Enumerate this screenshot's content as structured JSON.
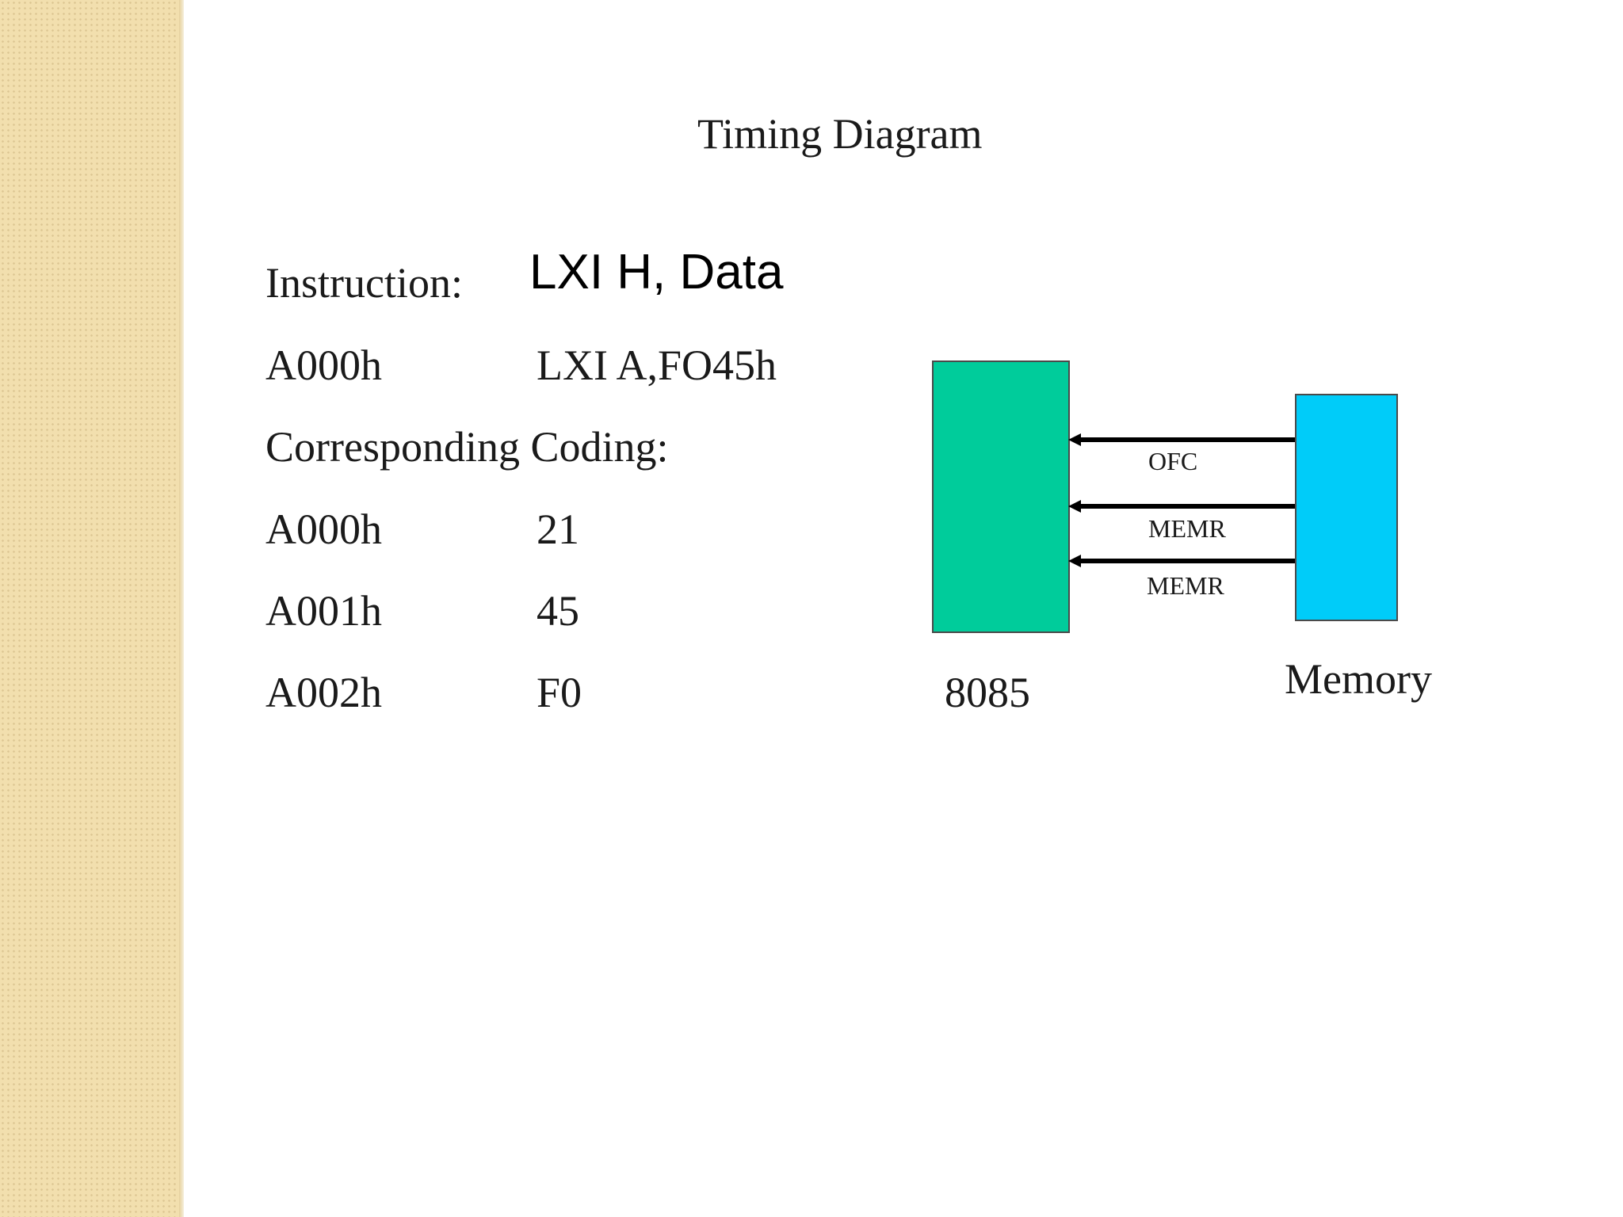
{
  "title": "Timing Diagram",
  "instruction": {
    "label": "Instruction:",
    "value": "LXI H, Data"
  },
  "example": {
    "address": "A000h",
    "code": "LXI A,FO45h"
  },
  "coding": {
    "label": "Corresponding Coding:",
    "rows": [
      {
        "address": "A000h",
        "value": "21"
      },
      {
        "address": "A001h",
        "value": "45"
      },
      {
        "address": "A002h",
        "value": "F0"
      }
    ]
  },
  "diagram": {
    "cpu_label": "8085",
    "memory_label": "Memory",
    "signals": [
      "OFC",
      "MEMR",
      "MEMR"
    ],
    "colors": {
      "cpu": "#00cc9b",
      "memory": "#00ccf9",
      "strip": "#f2dfae"
    }
  }
}
